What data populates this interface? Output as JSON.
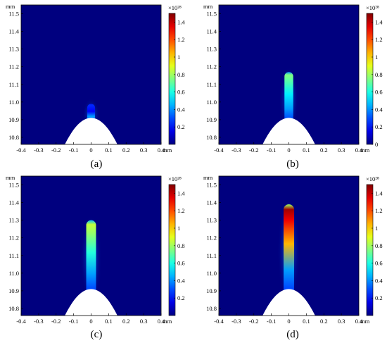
{
  "figure": {
    "panel_labels": [
      "(a)",
      "(b)",
      "(c)",
      "(d)"
    ]
  },
  "chart_data": [
    {
      "type": "heatmap",
      "panel_label": "(a)",
      "x_unit": "mm",
      "y_unit": "mm",
      "xlim": [
        -0.4,
        0.4
      ],
      "ylim": [
        10.76,
        11.55
      ],
      "x_ticks": [
        "-0.4",
        "-0.3",
        "-0.2",
        "-0.1",
        "0",
        "0.1",
        "0.2",
        "0.3",
        "0.4"
      ],
      "y_ticks": [
        "10.8",
        "10.9",
        "11.0",
        "11.1",
        "11.2",
        "11.3",
        "11.4",
        "11.5"
      ],
      "colorbar": {
        "multiplier": "×10²⁸",
        "range": [
          0,
          1.5
        ],
        "ticks": [
          "0.2",
          "0.4",
          "0.6",
          "0.8",
          "1",
          "1.2",
          "1.4"
        ]
      },
      "electrode": {
        "shape": "parabolic tip",
        "apex": [
          0,
          10.91
        ],
        "half_width_at_base": 0.15
      },
      "plume": {
        "peak_x": 0,
        "top_y": 10.99,
        "half_width": 0.022,
        "peak_value": 0.25
      },
      "colors": {
        "background": "#00007f",
        "electrode": "#ffffff"
      }
    },
    {
      "type": "heatmap",
      "panel_label": "(b)",
      "x_unit": "mm",
      "y_unit": "mm",
      "xlim": [
        -0.4,
        0.4
      ],
      "ylim": [
        10.76,
        11.55
      ],
      "x_ticks": [
        "-0.4",
        "-0.3",
        "-0.2",
        "-0.1",
        "0",
        "0.1",
        "0.2",
        "0.3",
        "0.4"
      ],
      "y_ticks": [
        "10.8",
        "10.9",
        "11.0",
        "11.1",
        "11.2",
        "11.3",
        "11.4",
        "11.5"
      ],
      "colorbar": {
        "multiplier": "×10²⁸",
        "range": [
          0,
          1.5
        ],
        "ticks": [
          "0",
          "0.2",
          "0.4",
          "0.6",
          "0.8",
          "1",
          "1.2",
          "1.4"
        ]
      },
      "electrode": {
        "shape": "parabolic tip",
        "apex": [
          0,
          10.91
        ],
        "half_width_at_base": 0.15
      },
      "plume": {
        "peak_x": 0,
        "top_y": 11.17,
        "half_width": 0.025,
        "peak_value": 0.75
      },
      "colors": {
        "background": "#00007f",
        "electrode": "#ffffff"
      }
    },
    {
      "type": "heatmap",
      "panel_label": "(c)",
      "x_unit": "mm",
      "y_unit": "mm",
      "xlim": [
        -0.4,
        0.4
      ],
      "ylim": [
        10.76,
        11.55
      ],
      "x_ticks": [
        "-0.4",
        "-0.3",
        "-0.2",
        "-0.1",
        "0",
        "0.1",
        "0.2",
        "0.3",
        "0.4"
      ],
      "y_ticks": [
        "10.8",
        "10.9",
        "11.0",
        "11.1",
        "11.2",
        "11.3",
        "11.4",
        "11.5"
      ],
      "colorbar": {
        "multiplier": "×10²⁸",
        "range": [
          0,
          1.5
        ],
        "ticks": [
          "0.2",
          "0.4",
          "0.6",
          "0.8",
          "1",
          "1.2",
          "1.4"
        ]
      },
      "electrode": {
        "shape": "parabolic tip",
        "apex": [
          0,
          10.91
        ],
        "half_width_at_base": 0.15
      },
      "plume": {
        "peak_x": 0,
        "top_y": 11.3,
        "half_width": 0.028,
        "peak_value": 0.85
      },
      "colors": {
        "background": "#00007f",
        "electrode": "#ffffff"
      }
    },
    {
      "type": "heatmap",
      "panel_label": "(d)",
      "x_unit": "mm",
      "y_unit": "mm",
      "xlim": [
        -0.4,
        0.4
      ],
      "ylim": [
        10.76,
        11.55
      ],
      "x_ticks": [
        "-0.4",
        "-0.3",
        "-0.2",
        "-0.1",
        "0",
        "0.1",
        "0.2",
        "0.3",
        "0.4"
      ],
      "y_ticks": [
        "10.8",
        "10.9",
        "11.0",
        "11.1",
        "11.2",
        "11.3",
        "11.4",
        "11.5"
      ],
      "colorbar": {
        "multiplier": "×10²⁸",
        "range": [
          0,
          1.5
        ],
        "ticks": [
          "0.2",
          "0.4",
          "0.6",
          "0.8",
          "1",
          "1.2",
          "1.4"
        ]
      },
      "electrode": {
        "shape": "parabolic tip",
        "apex": [
          0,
          10.91
        ],
        "half_width_at_base": 0.15
      },
      "plume": {
        "peak_x": 0,
        "top_y": 11.39,
        "half_width": 0.03,
        "peak_value": 1.45
      },
      "colors": {
        "background": "#00007f",
        "electrode": "#ffffff"
      }
    }
  ]
}
